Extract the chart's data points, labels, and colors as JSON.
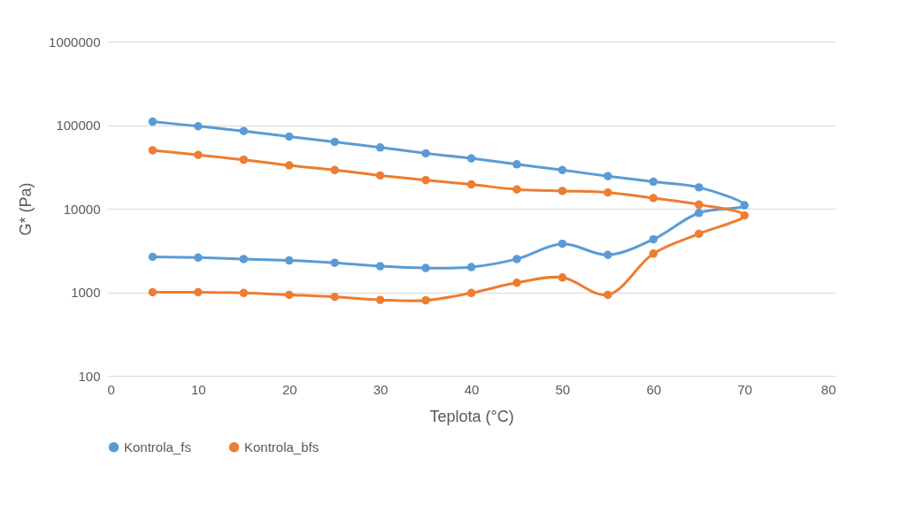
{
  "chart_data": {
    "type": "line",
    "xlabel": "Teplota (°C)",
    "ylabel": "G* (Pa)",
    "log": "y",
    "grid": "y",
    "legend": "bottom",
    "marker": "circle",
    "line_style": "solid",
    "xlim": [
      0,
      80
    ],
    "xticks": [
      0,
      10,
      20,
      30,
      40,
      50,
      60,
      70,
      80
    ],
    "ylim": [
      100,
      1000000
    ],
    "yticks": [
      100,
      1000,
      10000,
      100000,
      1000000
    ],
    "series": [
      {
        "name": "Kontrola_fs",
        "color": "#5b9bd5",
        "x": [
          5,
          10,
          15,
          20,
          25,
          30,
          35,
          40,
          45,
          50,
          55,
          60,
          65,
          70,
          65,
          60,
          55,
          50,
          45,
          40,
          35,
          30,
          25,
          20,
          15,
          10,
          5
        ],
        "values": [
          110000,
          97000,
          85000,
          73000,
          63000,
          54000,
          46000,
          40000,
          34000,
          29000,
          24500,
          21000,
          18000,
          11000,
          8900,
          4300,
          2800,
          3800,
          2500,
          2000,
          1950,
          2050,
          2250,
          2400,
          2500,
          2600,
          2650
        ]
      },
      {
        "name": "Kontrola_bfs",
        "color": "#ed7d31",
        "x": [
          5,
          10,
          15,
          20,
          25,
          30,
          35,
          40,
          45,
          50,
          55,
          60,
          65,
          70,
          65,
          60,
          55,
          50,
          45,
          40,
          35,
          30,
          25,
          20,
          15,
          10,
          5
        ],
        "values": [
          50000,
          44000,
          38500,
          33000,
          29000,
          25000,
          22000,
          19500,
          17000,
          16300,
          15600,
          13400,
          11200,
          8300,
          5000,
          2900,
          930,
          1500,
          1300,
          980,
          800,
          810,
          880,
          930,
          980,
          1000,
          1000
        ]
      }
    ]
  }
}
